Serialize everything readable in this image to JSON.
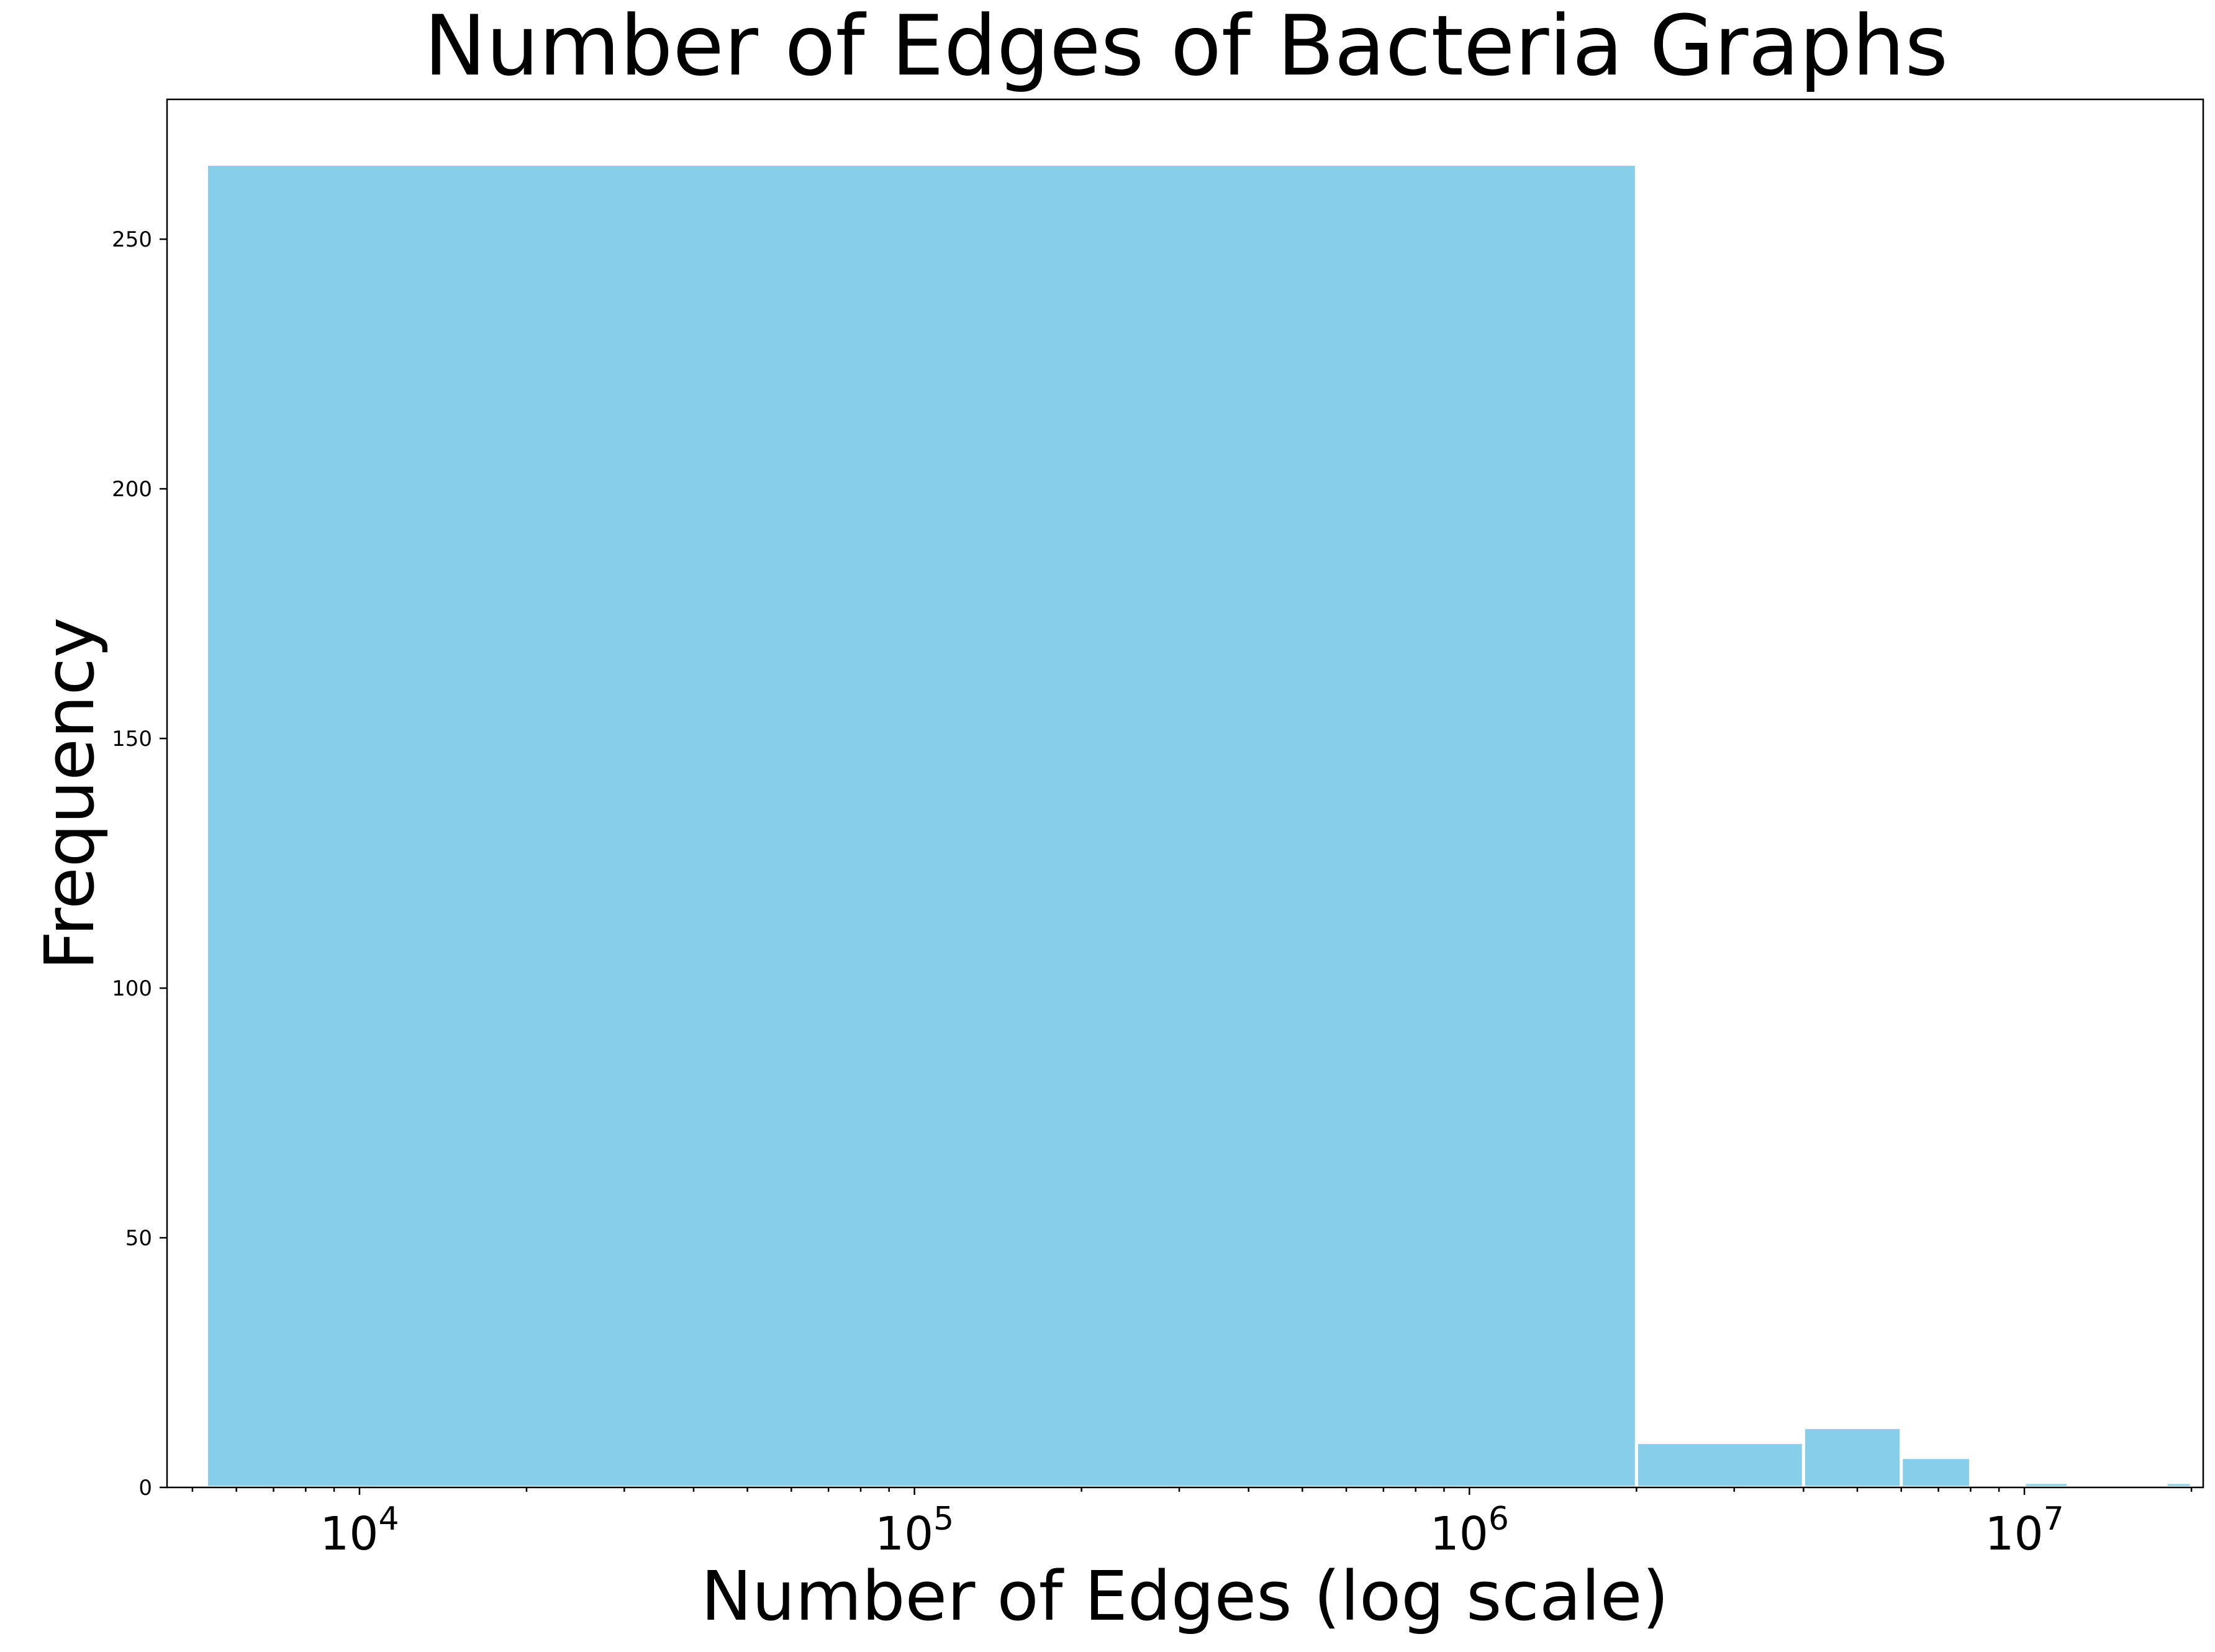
{
  "chart_data": {
    "type": "bar",
    "title": "Number of Edges of Bacteria Graphs",
    "xlabel": "Number of Edges (log scale)",
    "ylabel": "Frequency",
    "x_scale": "log",
    "xlim": [
      4500,
      21000000
    ],
    "ylim": [
      0,
      278
    ],
    "grid": false,
    "bar_color": "#87CEEB",
    "bins": [
      {
        "x_start": 5300,
        "x_end": 2000000,
        "value": 265
      },
      {
        "x_start": 2000000,
        "x_end": 4000000,
        "value": 9
      },
      {
        "x_start": 4000000,
        "x_end": 6000000,
        "value": 12
      },
      {
        "x_start": 6000000,
        "x_end": 8000000,
        "value": 6
      },
      {
        "x_start": 10000000,
        "x_end": 12000000,
        "value": 1
      },
      {
        "x_start": 18000000,
        "x_end": 20000000,
        "value": 1
      }
    ],
    "yticks": [
      0,
      50,
      100,
      150,
      200,
      250
    ],
    "xticks": [
      {
        "value": 10000,
        "base": "10",
        "exp": "4"
      },
      {
        "value": 100000,
        "base": "10",
        "exp": "5"
      },
      {
        "value": 1000000,
        "base": "10",
        "exp": "6"
      },
      {
        "value": 10000000,
        "base": "10",
        "exp": "7"
      }
    ]
  }
}
